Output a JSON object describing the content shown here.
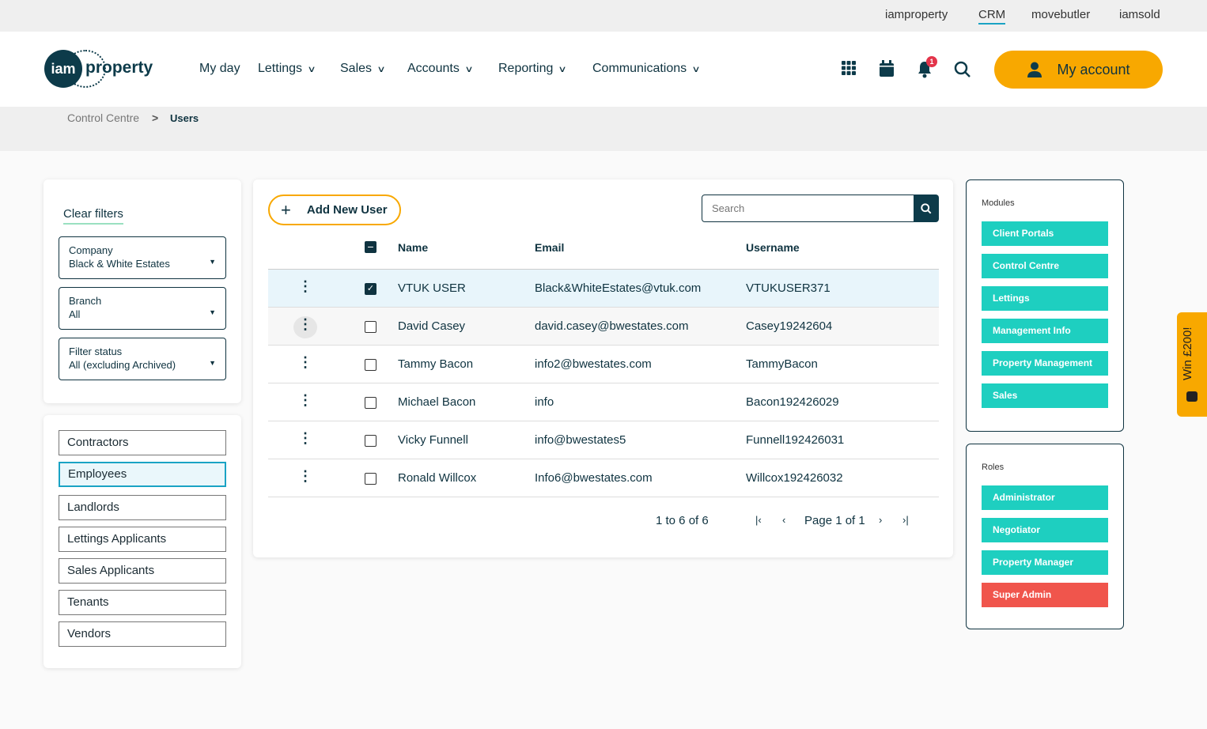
{
  "topbar": {
    "links": [
      "iamproperty",
      "CRM",
      "movebutler",
      "iamsold"
    ],
    "active": "CRM"
  },
  "header": {
    "logo_iam": "iam",
    "logo_property": "property",
    "nav": [
      "My day",
      "Lettings",
      "Sales",
      "Accounts",
      "Reporting",
      "Communications"
    ],
    "notification_count": "1",
    "my_account": "My account"
  },
  "breadcrumb": {
    "parent": "Control Centre",
    "current": "Users"
  },
  "filters": {
    "clear": "Clear filters",
    "company_label": "Company",
    "company_value": "Black & White Estates",
    "branch_label": "Branch",
    "branch_value": "All",
    "status_label": "Filter status",
    "status_value": "All (excluding Archived)"
  },
  "categories": [
    "Contractors",
    "Employees",
    "Landlords",
    "Lettings Applicants",
    "Sales Applicants",
    "Tenants",
    "Vendors"
  ],
  "active_category": "Employees",
  "table": {
    "add_button": "Add New User",
    "search_placeholder": "Search",
    "headers": [
      "Name",
      "Email",
      "Username"
    ],
    "rows": [
      {
        "name": "VTUK USER",
        "email": "Black&WhiteEstates@vtuk.com",
        "username": "VTUKUSER371",
        "checked": true
      },
      {
        "name": "David Casey",
        "email": "david.casey@bwestates.com",
        "username": "Casey19242604",
        "checked": false
      },
      {
        "name": "Tammy Bacon",
        "email": "info2@bwestates.com",
        "username": "TammyBacon",
        "checked": false
      },
      {
        "name": "Michael Bacon",
        "email": "info",
        "username": "Bacon192426029",
        "checked": false
      },
      {
        "name": "Vicky Funnell",
        "email": "info@bwestates5",
        "username": "Funnell192426031",
        "checked": false
      },
      {
        "name": "Ronald Willcox",
        "email": "Info6@bwestates.com",
        "username": "Willcox192426032",
        "checked": false
      }
    ],
    "range": "1 to 6 of 6",
    "page": "Page 1 of 1"
  },
  "modules": {
    "title": "Modules",
    "items": [
      "Client Portals",
      "Control Centre",
      "Lettings",
      "Management Info",
      "Property Management",
      "Sales"
    ]
  },
  "roles": {
    "title": "Roles",
    "items": [
      "Administrator",
      "Negotiator",
      "Property Manager",
      "Super Admin"
    ]
  },
  "promo": {
    "label": "Win £200!"
  },
  "colors": {
    "brand": "#0d3b4a",
    "accent": "#f8a800",
    "tag": "#1ecfc0",
    "danger": "#f0554c"
  }
}
